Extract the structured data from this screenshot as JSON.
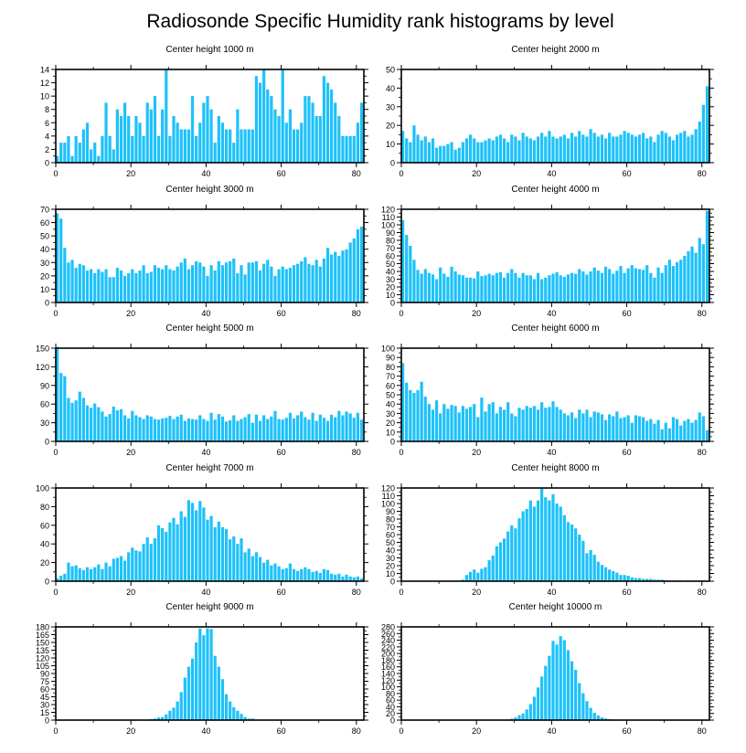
{
  "title": "Radiosonde Specific Humidity rank histograms by level",
  "bar_color": "#1ec1f9",
  "chart_data": [
    {
      "type": "bar",
      "title": "Center height 1000 m",
      "x": "rank 0-81",
      "ylim": [
        0,
        14
      ],
      "yticks": [
        0,
        2,
        4,
        6,
        8,
        10,
        12,
        14
      ],
      "xticks": [
        0,
        20,
        40,
        60,
        80
      ],
      "values": [
        1,
        3,
        3,
        4,
        1,
        4,
        3,
        5,
        6,
        2,
        3,
        1,
        4,
        9,
        4,
        2,
        8,
        7,
        9,
        7,
        4,
        7,
        6,
        4,
        9,
        8,
        10,
        4,
        8,
        14,
        4,
        7,
        6,
        5,
        5,
        5,
        10,
        4,
        6,
        9,
        10,
        8,
        3,
        7,
        6,
        5,
        5,
        3,
        8,
        5,
        5,
        5,
        5,
        13,
        12,
        14,
        11,
        10,
        8,
        7,
        14,
        6,
        8,
        5,
        5,
        6,
        10,
        10,
        9,
        7,
        7,
        13,
        12,
        11,
        9,
        7,
        4,
        4,
        4,
        4,
        6,
        9
      ]
    },
    {
      "type": "bar",
      "title": "Center height 2000 m",
      "x": "rank 0-81",
      "ylim": [
        0,
        50
      ],
      "yticks": [
        0,
        10,
        20,
        30,
        40,
        50
      ],
      "xticks": [
        0,
        20,
        40,
        60,
        80
      ],
      "values": [
        17,
        13,
        11,
        20,
        15,
        12,
        14,
        11,
        13,
        8,
        9,
        9,
        10,
        11,
        7,
        8,
        11,
        13,
        15,
        13,
        11,
        11,
        12,
        13,
        12,
        14,
        15,
        13,
        11,
        15,
        14,
        12,
        16,
        14,
        13,
        12,
        14,
        16,
        14,
        17,
        14,
        13,
        14,
        15,
        13,
        16,
        14,
        17,
        15,
        14,
        18,
        16,
        14,
        15,
        13,
        16,
        14,
        14,
        15,
        17,
        16,
        15,
        14,
        15,
        16,
        13,
        14,
        11,
        15,
        17,
        16,
        14,
        12,
        15,
        16,
        17,
        14,
        15,
        18,
        22,
        31,
        41
      ]
    },
    {
      "type": "bar",
      "title": "Center height 3000 m",
      "x": "rank 0-81",
      "ylim": [
        0,
        70
      ],
      "yticks": [
        0,
        10,
        20,
        30,
        40,
        50,
        60,
        70
      ],
      "xticks": [
        0,
        20,
        40,
        60,
        80
      ],
      "values": [
        67,
        63,
        41,
        30,
        32,
        26,
        29,
        28,
        24,
        25,
        22,
        25,
        23,
        25,
        19,
        19,
        26,
        24,
        20,
        22,
        25,
        22,
        24,
        28,
        22,
        23,
        28,
        26,
        25,
        28,
        25,
        24,
        27,
        30,
        33,
        25,
        28,
        31,
        30,
        27,
        20,
        28,
        24,
        31,
        28,
        30,
        31,
        33,
        22,
        28,
        21,
        30,
        30,
        31,
        24,
        29,
        32,
        27,
        20,
        25,
        27,
        25,
        26,
        28,
        29,
        31,
        34,
        29,
        28,
        32,
        27,
        33,
        41,
        36,
        38,
        35,
        39,
        40,
        45,
        48,
        55,
        57
      ]
    },
    {
      "type": "bar",
      "title": "Center height 4000 m",
      "x": "rank 0-81",
      "ylim": [
        0,
        120
      ],
      "yticks": [
        0,
        10,
        20,
        30,
        40,
        50,
        60,
        70,
        80,
        90,
        100,
        110,
        120
      ],
      "xticks": [
        0,
        20,
        40,
        60,
        80
      ],
      "values": [
        106,
        87,
        73,
        55,
        42,
        37,
        43,
        38,
        36,
        30,
        45,
        37,
        33,
        46,
        40,
        36,
        35,
        32,
        32,
        31,
        40,
        34,
        35,
        37,
        35,
        38,
        39,
        32,
        38,
        43,
        38,
        32,
        38,
        35,
        35,
        30,
        38,
        30,
        32,
        35,
        37,
        39,
        35,
        33,
        36,
        38,
        37,
        43,
        40,
        36,
        40,
        45,
        41,
        38,
        46,
        43,
        37,
        41,
        47,
        38,
        44,
        48,
        44,
        43,
        42,
        48,
        38,
        32,
        45,
        38,
        48,
        55,
        47,
        52,
        55,
        60,
        66,
        72,
        64,
        83,
        75,
        118
      ]
    },
    {
      "type": "bar",
      "title": "Center height 5000 m",
      "x": "rank 0-81",
      "ylim": [
        0,
        150
      ],
      "yticks": [
        0,
        30,
        60,
        90,
        120,
        150
      ],
      "xticks": [
        0,
        20,
        40,
        60,
        80
      ],
      "values": [
        152,
        110,
        105,
        70,
        62,
        66,
        80,
        70,
        58,
        54,
        61,
        55,
        48,
        40,
        44,
        56,
        50,
        52,
        42,
        37,
        49,
        42,
        39,
        36,
        42,
        40,
        36,
        35,
        37,
        38,
        41,
        36,
        40,
        43,
        33,
        37,
        36,
        35,
        42,
        36,
        33,
        46,
        35,
        44,
        40,
        32,
        34,
        42,
        33,
        36,
        39,
        44,
        30,
        43,
        33,
        42,
        36,
        40,
        49,
        36,
        35,
        38,
        46,
        37,
        42,
        48,
        39,
        35,
        46,
        33,
        43,
        38,
        33,
        43,
        39,
        49,
        42,
        48,
        45,
        38,
        46,
        35
      ]
    },
    {
      "type": "bar",
      "title": "Center height 6000 m",
      "x": "rank 0-81",
      "ylim": [
        0,
        100
      ],
      "yticks": [
        0,
        10,
        20,
        30,
        40,
        50,
        60,
        70,
        80,
        90,
        100
      ],
      "xticks": [
        0,
        20,
        40,
        60,
        80
      ],
      "values": [
        84,
        63,
        55,
        52,
        55,
        64,
        48,
        40,
        34,
        44,
        30,
        40,
        35,
        39,
        38,
        31,
        38,
        35,
        37,
        40,
        26,
        47,
        32,
        40,
        42,
        30,
        37,
        34,
        42,
        30,
        27,
        36,
        34,
        38,
        36,
        38,
        34,
        42,
        36,
        37,
        43,
        37,
        34,
        30,
        28,
        31,
        25,
        34,
        30,
        34,
        26,
        32,
        31,
        29,
        23,
        29,
        27,
        32,
        25,
        26,
        28,
        20,
        28,
        27,
        26,
        22,
        24,
        19,
        23,
        13,
        20,
        14,
        26,
        24,
        17,
        22,
        24,
        20,
        23,
        31,
        27,
        12
      ]
    },
    {
      "type": "bar",
      "title": "Center height 7000 m",
      "x": "rank 0-81",
      "ylim": [
        0,
        100
      ],
      "yticks": [
        0,
        20,
        40,
        60,
        80,
        100
      ],
      "xticks": [
        0,
        20,
        40,
        60,
        80
      ],
      "values": [
        3,
        6,
        8,
        20,
        16,
        17,
        14,
        12,
        15,
        13,
        15,
        18,
        13,
        20,
        16,
        24,
        25,
        27,
        22,
        31,
        36,
        33,
        32,
        40,
        47,
        40,
        46,
        60,
        57,
        53,
        63,
        68,
        61,
        75,
        69,
        87,
        84,
        76,
        86,
        79,
        66,
        70,
        58,
        64,
        58,
        56,
        45,
        48,
        40,
        46,
        31,
        35,
        27,
        31,
        26,
        20,
        23,
        17,
        19,
        16,
        13,
        14,
        19,
        13,
        11,
        13,
        15,
        13,
        10,
        11,
        9,
        13,
        12,
        8,
        7,
        8,
        5,
        7,
        5,
        4,
        5,
        3
      ]
    },
    {
      "type": "bar",
      "title": "Center height 8000 m",
      "x": "rank 0-81",
      "ylim": [
        0,
        120
      ],
      "yticks": [
        0,
        10,
        20,
        30,
        40,
        50,
        60,
        70,
        80,
        90,
        100,
        110,
        120
      ],
      "xticks": [
        0,
        20,
        40,
        60,
        80
      ],
      "values": [
        0,
        0,
        0,
        0,
        0,
        0,
        0,
        0,
        0,
        0,
        0,
        0,
        0,
        0,
        1,
        1,
        2,
        8,
        12,
        15,
        11,
        16,
        18,
        27,
        33,
        45,
        50,
        55,
        64,
        72,
        68,
        81,
        90,
        93,
        104,
        96,
        104,
        120,
        108,
        104,
        112,
        100,
        96,
        85,
        76,
        73,
        68,
        60,
        52,
        36,
        40,
        34,
        25,
        21,
        18,
        15,
        13,
        11,
        8,
        8,
        7,
        5,
        4,
        4,
        3,
        3,
        3,
        2,
        2,
        2,
        1,
        1,
        1,
        1,
        1,
        0,
        1,
        0,
        0,
        1,
        1,
        0
      ]
    },
    {
      "type": "bar",
      "title": "Center height 9000 m",
      "x": "rank 0-81",
      "ylim": [
        0,
        180
      ],
      "yticks": [
        0,
        15,
        30,
        45,
        60,
        75,
        90,
        105,
        120,
        135,
        150,
        165,
        180
      ],
      "xticks": [
        0,
        20,
        40,
        60,
        80
      ],
      "values": [
        0,
        0,
        0,
        0,
        0,
        0,
        0,
        0,
        0,
        0,
        0,
        0,
        0,
        0,
        0,
        0,
        0,
        0,
        0,
        0,
        0,
        0,
        0,
        0,
        1,
        2,
        3,
        5,
        6,
        11,
        18,
        24,
        36,
        54,
        82,
        103,
        119,
        150,
        177,
        164,
        177,
        176,
        124,
        103,
        79,
        50,
        36,
        25,
        18,
        12,
        6,
        3,
        3,
        1,
        1,
        0,
        0,
        0,
        0,
        0,
        0,
        0,
        1,
        0,
        0,
        0,
        0,
        0,
        0,
        1,
        0,
        0,
        0,
        0,
        0,
        0,
        0,
        0,
        0,
        0,
        0,
        0
      ]
    },
    {
      "type": "bar",
      "title": "Center height 10000 m",
      "x": "rank 0-81",
      "ylim": [
        0,
        280
      ],
      "yticks": [
        0,
        20,
        40,
        60,
        80,
        100,
        120,
        140,
        160,
        180,
        200,
        220,
        240,
        260,
        280
      ],
      "xticks": [
        0,
        20,
        40,
        60,
        80
      ],
      "values": [
        0,
        0,
        0,
        0,
        0,
        0,
        0,
        0,
        0,
        0,
        0,
        0,
        0,
        0,
        0,
        0,
        0,
        0,
        0,
        0,
        0,
        0,
        0,
        0,
        0,
        0,
        1,
        1,
        2,
        4,
        8,
        15,
        20,
        32,
        48,
        70,
        98,
        131,
        163,
        193,
        238,
        227,
        252,
        240,
        210,
        177,
        151,
        111,
        81,
        57,
        37,
        22,
        14,
        8,
        5,
        3,
        2,
        1,
        1,
        1,
        0,
        0,
        0,
        0,
        0,
        0,
        0,
        0,
        0,
        0,
        0,
        0,
        0,
        0,
        0,
        0,
        0,
        0,
        0,
        0,
        0,
        0
      ]
    }
  ]
}
